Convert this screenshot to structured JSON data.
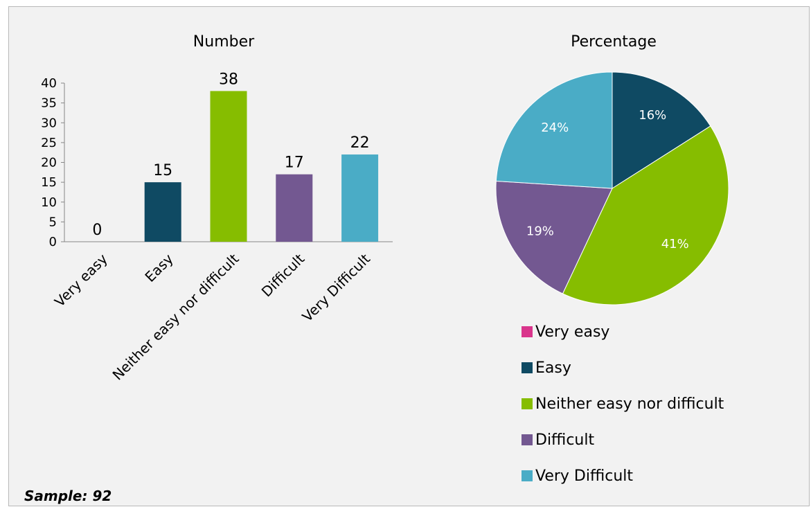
{
  "footer": {
    "sample_text": "Sample: 92"
  },
  "chart_data": [
    {
      "type": "bar",
      "title": "Number",
      "categories": [
        "Very easy",
        "Easy",
        "Neither easy nor difficult",
        "Difficult",
        "Very Difficult"
      ],
      "values": [
        0,
        15,
        38,
        17,
        22
      ],
      "colors": [
        "#d9358c",
        "#0f4a63",
        "#86bd00",
        "#735891",
        "#4aacc6"
      ],
      "yticks": [
        0,
        5,
        10,
        15,
        20,
        25,
        30,
        35,
        40
      ],
      "ylim": [
        0,
        40
      ],
      "grid": false,
      "data_labels": true,
      "xlabel": "",
      "ylabel": ""
    },
    {
      "type": "pie",
      "title": "Percentage",
      "categories": [
        "Very easy",
        "Easy",
        "Neither easy nor difficult",
        "Difficult",
        "Very Difficult"
      ],
      "values": [
        0,
        16,
        41,
        19,
        24
      ],
      "labels": [
        "",
        "16%",
        "41%",
        "19%",
        "24%"
      ],
      "colors": [
        "#d9358c",
        "#0f4a63",
        "#86bd00",
        "#735891",
        "#4aacc6"
      ],
      "legend": [
        "Very easy",
        "Easy",
        "Neither easy nor difficult",
        "Difficult",
        "Very Difficult"
      ],
      "legend_position": "bottom"
    }
  ]
}
